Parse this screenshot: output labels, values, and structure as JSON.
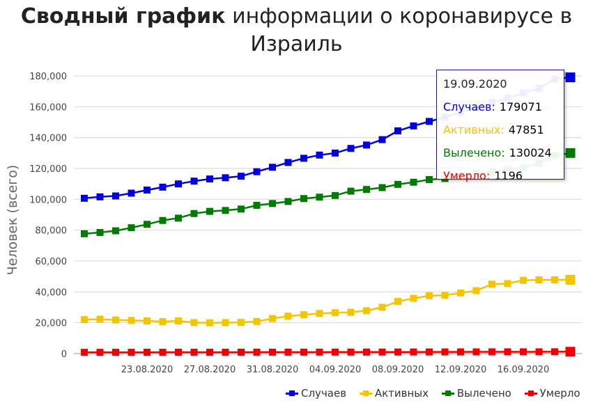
{
  "title": {
    "bold": "Сводный график",
    "rest": "информации о коронавирусе в Израиль"
  },
  "tooltip": {
    "date": "19.09.2020",
    "rows": [
      {
        "label": "Случаев:",
        "value": "179071",
        "color": "#0000dd"
      },
      {
        "label": "Активных:",
        "value": "47851",
        "color": "#f2c500"
      },
      {
        "label": "Вылечено:",
        "value": "130024",
        "color": "#007a00"
      },
      {
        "label": "Умерло:",
        "value": "1196",
        "color": "#ee0000"
      }
    ]
  },
  "chart_data": {
    "type": "line",
    "title": "Сводный график информации о коронавирусе в Израиль",
    "xlabel": "",
    "ylabel": "Человек (всего)",
    "ylim": [
      0,
      185000
    ],
    "yticks": [
      0,
      20000,
      40000,
      60000,
      80000,
      100000,
      120000,
      140000,
      160000,
      180000
    ],
    "ytick_labels": [
      "0",
      "20,000",
      "40,000",
      "60,000",
      "80,000",
      "100,000",
      "120,000",
      "140,000",
      "160,000",
      "180,000"
    ],
    "x": [
      "19.08.2020",
      "20.08.2020",
      "21.08.2020",
      "22.08.2020",
      "23.08.2020",
      "24.08.2020",
      "25.08.2020",
      "26.08.2020",
      "27.08.2020",
      "28.08.2020",
      "29.08.2020",
      "30.08.2020",
      "31.08.2020",
      "01.09.2020",
      "02.09.2020",
      "03.09.2020",
      "04.09.2020",
      "05.09.2020",
      "06.09.2020",
      "07.09.2020",
      "08.09.2020",
      "09.09.2020",
      "10.09.2020",
      "11.09.2020",
      "12.09.2020",
      "13.09.2020",
      "14.09.2020",
      "15.09.2020",
      "16.09.2020",
      "17.09.2020",
      "18.09.2020",
      "19.09.2020"
    ],
    "xtick_labels": [
      "23.08.2020",
      "27.08.2020",
      "31.08.2020",
      "04.09.2020",
      "08.09.2020",
      "12.09.2020",
      "16.09.2020"
    ],
    "series": [
      {
        "name": "Случаев",
        "color": "#0000dd",
        "values": [
          100700,
          101600,
          102200,
          104000,
          106000,
          107900,
          110000,
          111800,
          113200,
          114000,
          115000,
          117900,
          120800,
          123900,
          126600,
          128700,
          130000,
          133000,
          135200,
          138700,
          144400,
          147600,
          150500,
          153200,
          156500,
          159500,
          162800,
          165600,
          169000,
          172000,
          178000,
          179071
        ]
      },
      {
        "name": "Активных",
        "color": "#f2c500",
        "values": [
          22000,
          22300,
          21800,
          21500,
          21200,
          20700,
          21200,
          20100,
          20000,
          20100,
          20200,
          20800,
          22700,
          24300,
          25200,
          26000,
          26500,
          26800,
          27800,
          30000,
          33800,
          35800,
          37500,
          37800,
          39300,
          40800,
          45000,
          45400,
          47500,
          47800,
          47851,
          47851
        ]
      },
      {
        "name": "Вылечено",
        "color": "#007a00",
        "values": [
          77700,
          78500,
          79600,
          81600,
          83800,
          86300,
          87800,
          90800,
          92200,
          92800,
          93700,
          96100,
          97300,
          98600,
          100500,
          101400,
          102500,
          105300,
          106400,
          107600,
          109700,
          111100,
          112800,
          113500,
          115400,
          117000,
          117700,
          119400,
          120500,
          123400,
          128300,
          130024
        ]
      },
      {
        "name": "Умерло",
        "color": "#ee0000",
        "values": [
          830,
          840,
          850,
          860,
          870,
          880,
          890,
          900,
          905,
          910,
          915,
          925,
          935,
          945,
          955,
          965,
          975,
          985,
          995,
          1005,
          1030,
          1050,
          1065,
          1080,
          1095,
          1110,
          1125,
          1140,
          1150,
          1160,
          1180,
          1196
        ]
      }
    ],
    "legend": "bottom-right",
    "grid": true
  }
}
